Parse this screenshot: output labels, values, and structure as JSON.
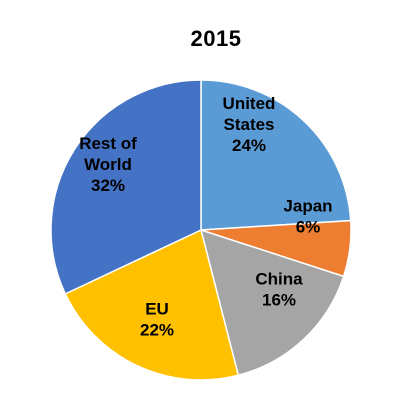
{
  "chart_data": {
    "type": "pie",
    "title": "2015",
    "slices": [
      {
        "label_lines": [
          "United",
          "States"
        ],
        "value": 24,
        "value_label": "24%",
        "color": "#5B9BD5"
      },
      {
        "label_lines": [
          "Japan"
        ],
        "value": 6,
        "value_label": "6%",
        "color": "#ED7D31"
      },
      {
        "label_lines": [
          "China"
        ],
        "value": 16,
        "value_label": "16%",
        "color": "#A5A5A5"
      },
      {
        "label_lines": [
          "EU"
        ],
        "value": 22,
        "value_label": "22%",
        "color": "#FFC000"
      },
      {
        "label_lines": [
          "Rest of",
          "World"
        ],
        "value": 32,
        "value_label": "32%",
        "color": "#4472C4"
      }
    ],
    "start_angle_deg": 0,
    "direction": "clockwise",
    "legend": "none"
  }
}
